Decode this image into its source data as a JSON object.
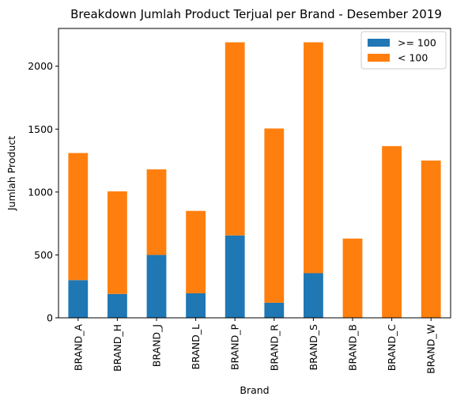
{
  "chart_data": {
    "type": "bar",
    "stacked": true,
    "title": "Breakdown Jumlah Product Terjual per Brand - Desember 2019",
    "xlabel": "Brand",
    "ylabel": "Jumlah Product",
    "categories": [
      "BRAND_A",
      "BRAND_H",
      "BRAND_J",
      "BRAND_L",
      "BRAND_P",
      "BRAND_R",
      "BRAND_S",
      "BRAND_B",
      "BRAND_C",
      "BRAND_W"
    ],
    "series": [
      {
        "name": ">= 100",
        "color": "#1f77b4",
        "values": [
          300,
          190,
          500,
          195,
          655,
          120,
          355,
          0,
          0,
          0
        ]
      },
      {
        "name": "< 100",
        "color": "#ff7f0e",
        "values": [
          1010,
          815,
          680,
          655,
          1535,
          1385,
          1835,
          630,
          1365,
          1250
        ]
      }
    ],
    "ylim": [
      0,
      2300
    ],
    "yticks": [
      0,
      500,
      1000,
      1500,
      2000
    ],
    "grid": false,
    "legend_position": "top-right"
  }
}
